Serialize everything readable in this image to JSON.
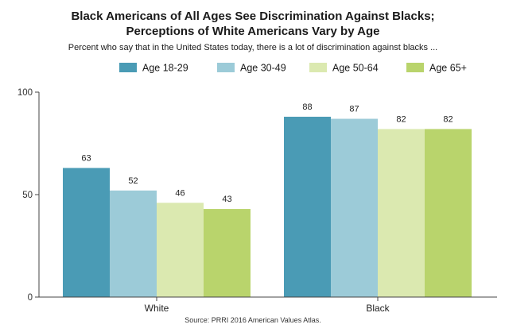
{
  "chart_data": {
    "type": "bar",
    "title": "Black Americans of All Ages See Discrimination Against Blacks;",
    "title_line2": "Perceptions of White Americans Vary by Age",
    "subtitle": "Percent who say that in the United States today, there is a lot of discrimination against blacks ...",
    "categories": [
      "White",
      "Black"
    ],
    "series": [
      {
        "name": "Age 18-29",
        "color": "#4a9bb5",
        "values": [
          63,
          88
        ]
      },
      {
        "name": "Age 30-49",
        "color": "#9ccbd8",
        "values": [
          52,
          87
        ]
      },
      {
        "name": "Age 50-64",
        "color": "#dbe9b0",
        "values": [
          46,
          82
        ]
      },
      {
        "name": "Age 65+",
        "color": "#b9d46c",
        "values": [
          43,
          82
        ]
      }
    ],
    "ylim": [
      0,
      100
    ],
    "yticks": [
      0,
      50,
      100
    ],
    "ytick_labels": [
      "0",
      "50",
      "100"
    ],
    "legend_position": "top",
    "grid": false,
    "xlabel": "",
    "ylabel": "",
    "source": "Source: PRRI 2016 American Values Atlas."
  }
}
